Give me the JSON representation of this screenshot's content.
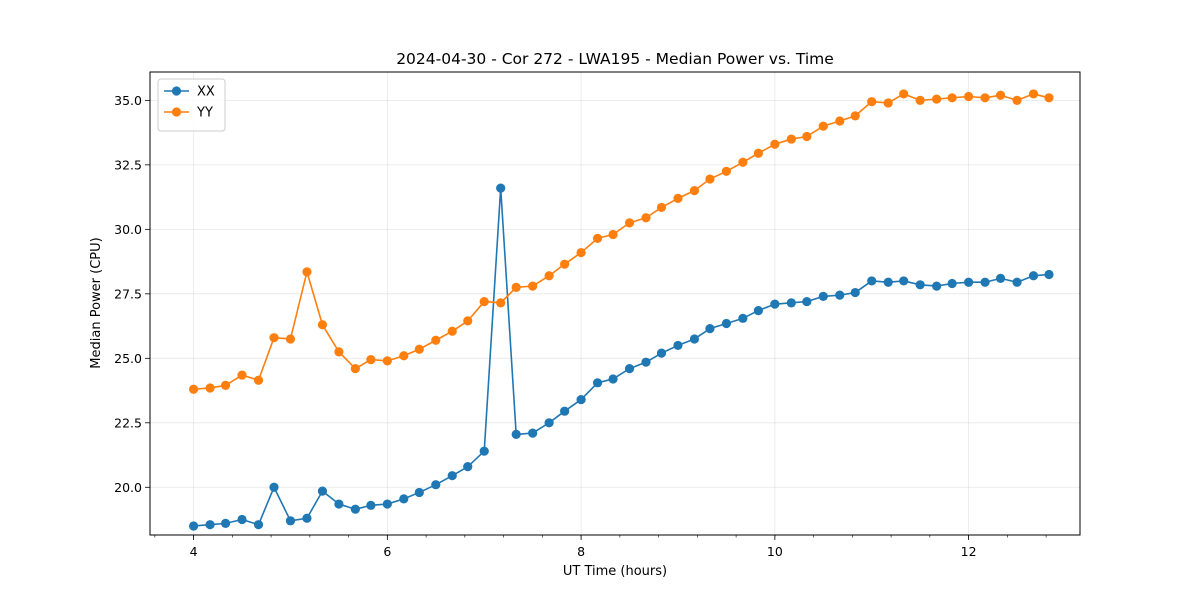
{
  "chart_data": {
    "type": "line",
    "title": "2024-04-30 - Cor 272 - LWA195 - Median Power vs. Time",
    "xlabel": "UT Time (hours)",
    "ylabel": "Median Power (CPU)",
    "xlim": [
      3.55,
      13.15
    ],
    "ylim": [
      18.15,
      36.1
    ],
    "xticks": [
      4,
      6,
      8,
      10,
      12
    ],
    "xtick_labels": [
      "4",
      "6",
      "8",
      "10",
      "12"
    ],
    "yticks": [
      20.0,
      22.5,
      25.0,
      27.5,
      30.0,
      32.5,
      35.0
    ],
    "ytick_labels": [
      "20.0",
      "22.5",
      "25.0",
      "27.5",
      "30.0",
      "32.5",
      "35.0"
    ],
    "grid": true,
    "legend_position": "top-left",
    "x": [
      4.0,
      4.17,
      4.33,
      4.5,
      4.67,
      4.83,
      5.0,
      5.17,
      5.33,
      5.5,
      5.67,
      5.83,
      6.0,
      6.17,
      6.33,
      6.5,
      6.67,
      6.83,
      7.0,
      7.17,
      7.33,
      7.5,
      7.67,
      7.83,
      8.0,
      8.17,
      8.33,
      8.5,
      8.67,
      8.83,
      9.0,
      9.17,
      9.33,
      9.5,
      9.67,
      9.83,
      10.0,
      10.17,
      10.33,
      10.5,
      10.67,
      10.83,
      11.0,
      11.17,
      11.33,
      11.5,
      11.67,
      11.83,
      12.0,
      12.17,
      12.33,
      12.5,
      12.67,
      12.83
    ],
    "series": [
      {
        "name": "XX",
        "color": "#1f77b4",
        "values": [
          18.5,
          18.55,
          18.6,
          18.75,
          18.55,
          20.0,
          18.7,
          18.8,
          19.85,
          19.35,
          19.15,
          19.3,
          19.35,
          19.55,
          19.8,
          20.1,
          20.45,
          20.8,
          21.4,
          31.6,
          22.05,
          22.1,
          22.5,
          22.95,
          23.4,
          24.05,
          24.2,
          24.6,
          24.85,
          25.2,
          25.5,
          25.75,
          26.15,
          26.35,
          26.55,
          26.85,
          27.1,
          27.15,
          27.2,
          27.4,
          27.45,
          27.55,
          28.0,
          27.95,
          28.0,
          27.85,
          27.8,
          27.9,
          27.95,
          27.95,
          28.1,
          27.95,
          28.2,
          28.25
        ]
      },
      {
        "name": "YY",
        "color": "#ff7f0e",
        "values": [
          23.8,
          23.85,
          23.95,
          24.35,
          24.15,
          25.8,
          25.75,
          28.35,
          26.3,
          25.25,
          24.6,
          24.95,
          24.9,
          25.1,
          25.35,
          25.7,
          26.05,
          26.45,
          27.2,
          27.15,
          27.75,
          27.8,
          28.2,
          28.65,
          29.1,
          29.65,
          29.8,
          30.25,
          30.45,
          30.85,
          31.2,
          31.5,
          31.95,
          32.25,
          32.6,
          32.95,
          33.3,
          33.5,
          33.6,
          34.0,
          34.2,
          34.4,
          34.95,
          34.9,
          35.25,
          35.0,
          35.05,
          35.1,
          35.15,
          35.1,
          35.2,
          35.0,
          35.25,
          35.1
        ]
      }
    ]
  }
}
